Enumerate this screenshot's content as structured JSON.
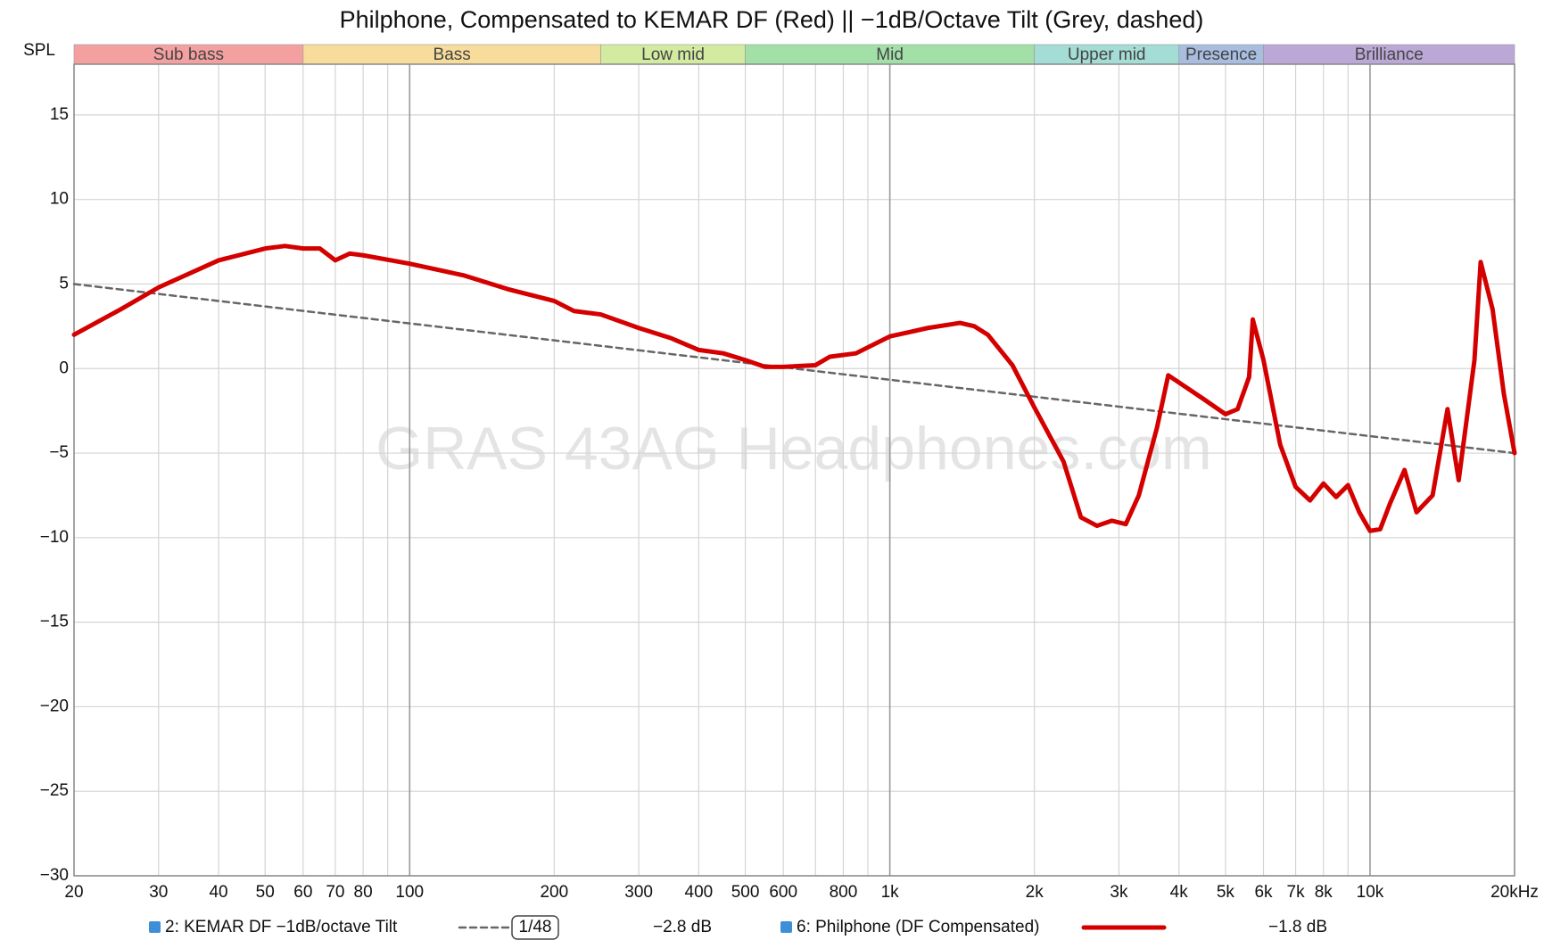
{
  "chart_data": {
    "type": "line",
    "title": "Philphone, Compensated to KEMAR DF (Red) || −1dB/Octave Tilt (Grey, dashed)",
    "ylabel": "SPL",
    "watermark": "GRAS 43AG Headphones.com",
    "log_x": true,
    "grid": true,
    "xlim": [
      20,
      20000
    ],
    "ylim": [
      -30,
      18
    ],
    "xticks": [
      20,
      30,
      40,
      50,
      60,
      70,
      80,
      100,
      200,
      300,
      400,
      500,
      600,
      800,
      {
        "value": 1000,
        "label": "1k"
      },
      {
        "value": 2000,
        "label": "2k"
      },
      {
        "value": 3000,
        "label": "3k"
      },
      {
        "value": 4000,
        "label": "4k"
      },
      {
        "value": 5000,
        "label": "5k"
      },
      {
        "value": 6000,
        "label": "6k"
      },
      {
        "value": 7000,
        "label": "7k"
      },
      {
        "value": 8000,
        "label": "8k"
      },
      {
        "value": 10000,
        "label": "10k"
      },
      {
        "value": 20000,
        "label": "20kHz"
      }
    ],
    "x_minor_grid": [
      90,
      700,
      900,
      9000
    ],
    "yticks": [
      15,
      10,
      5,
      0,
      {
        "value": -5,
        "label": "−5"
      },
      {
        "value": -10,
        "label": "−10"
      },
      {
        "value": -15,
        "label": "−15"
      },
      {
        "value": -20,
        "label": "−20"
      },
      {
        "value": -25,
        "label": "−25"
      },
      {
        "value": -30,
        "label": "−30"
      }
    ],
    "bands": [
      {
        "name": "Sub bass",
        "start": 20,
        "end": 60,
        "color": "#f5a0a0"
      },
      {
        "name": "Bass",
        "start": 60,
        "end": 250,
        "color": "#f7dc9b"
      },
      {
        "name": "Low mid",
        "start": 250,
        "end": 500,
        "color": "#d2eba0"
      },
      {
        "name": "Mid",
        "start": 500,
        "end": 2000,
        "color": "#a2e0a8"
      },
      {
        "name": "Upper mid",
        "start": 2000,
        "end": 4000,
        "color": "#a4dcd6"
      },
      {
        "name": "Presence",
        "start": 4000,
        "end": 6000,
        "color": "#a8bde0"
      },
      {
        "name": "Brilliance",
        "start": 6000,
        "end": 20000,
        "color": "#bba8d6"
      }
    ],
    "smoothing": "1/48",
    "series": [
      {
        "name": "2: KEMAR DF −1dB/octave Tilt",
        "color": "#666666",
        "dashed": true,
        "offset_label": "−2.8 dB",
        "x": [
          20,
          20000
        ],
        "values": [
          5,
          -5
        ]
      },
      {
        "name": "6: Philphone (DF Compensated)",
        "color": "#d40000",
        "dashed": false,
        "offset_label": "−1.8 dB",
        "x": [
          20,
          25,
          30,
          40,
          50,
          55,
          60,
          65,
          70,
          75,
          80,
          100,
          130,
          160,
          200,
          220,
          250,
          300,
          350,
          400,
          450,
          500,
          550,
          600,
          700,
          750,
          850,
          1000,
          1200,
          1400,
          1500,
          1600,
          1800,
          2000,
          2300,
          2500,
          2700,
          2900,
          3100,
          3300,
          3600,
          3800,
          4500,
          5000,
          5300,
          5600,
          5700,
          6000,
          6500,
          7000,
          7500,
          8000,
          8500,
          9000,
          9500,
          10000,
          10500,
          11000,
          11800,
          12500,
          13500,
          14500,
          15300,
          16500,
          17000,
          18000,
          19000,
          20000
        ],
        "values": [
          2.0,
          3.5,
          4.8,
          6.4,
          7.1,
          7.25,
          7.1,
          7.1,
          6.4,
          6.8,
          6.7,
          6.2,
          5.5,
          4.7,
          4.0,
          3.4,
          3.2,
          2.4,
          1.8,
          1.1,
          0.9,
          0.5,
          0.1,
          0.1,
          0.2,
          0.7,
          0.9,
          1.9,
          2.4,
          2.7,
          2.5,
          2.0,
          0.2,
          -2.3,
          -5.5,
          -8.8,
          -9.3,
          -9.0,
          -9.2,
          -7.5,
          -3.5,
          -0.4,
          -1.8,
          -2.7,
          -2.4,
          -0.5,
          2.9,
          0.5,
          -4.5,
          -7.0,
          -7.8,
          -6.8,
          -7.6,
          -6.9,
          -8.5,
          -9.6,
          -9.5,
          -8.0,
          -6.0,
          -8.5,
          -7.5,
          -2.4,
          -6.6,
          0.5,
          6.3,
          3.5,
          -1.5,
          -5.0
        ]
      }
    ]
  }
}
